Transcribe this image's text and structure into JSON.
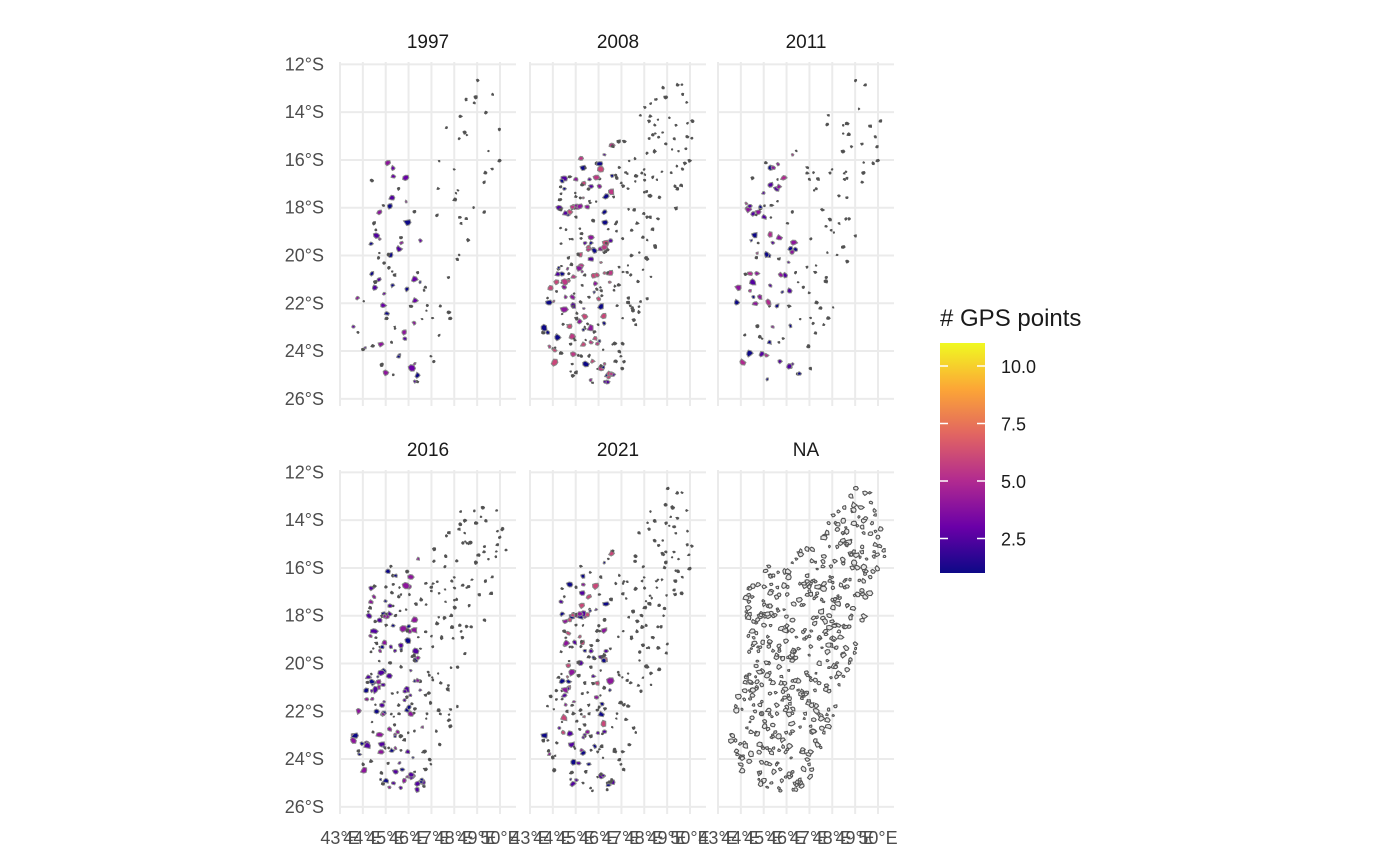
{
  "chart_data": {
    "type": "choropleth-facets",
    "subject": "Madagascar administrative regions",
    "facets": [
      {
        "label": "1997",
        "coverage": "sparse",
        "values": [
          1,
          2.5,
          3,
          4
        ]
      },
      {
        "label": "2008",
        "coverage": "dense",
        "values": [
          1,
          2.5,
          4,
          5.5,
          6
        ]
      },
      {
        "label": "2011",
        "coverage": "moderate",
        "values": [
          1,
          2.5,
          4,
          5
        ]
      },
      {
        "label": "2016",
        "coverage": "dense",
        "values": [
          1,
          2.5,
          4
        ]
      },
      {
        "label": "2021",
        "coverage": "dense",
        "values": [
          1,
          2.5,
          4,
          6
        ]
      },
      {
        "label": "NA",
        "coverage": "all-missing",
        "values": []
      }
    ],
    "y_axis": {
      "range": [
        -26.3,
        -11.9
      ],
      "ticks": [
        -12,
        -14,
        -16,
        -18,
        -20,
        -22,
        -24,
        -26
      ],
      "tick_labels": [
        "12°S",
        "14°S",
        "16°S",
        "18°S",
        "20°S",
        "22°S",
        "24°S",
        "26°S"
      ]
    },
    "x_axis": {
      "range": [
        43.0,
        50.7
      ],
      "ticks": [
        43,
        44,
        45,
        46,
        47,
        48,
        49,
        50
      ],
      "tick_labels": [
        "43°E",
        "44°E",
        "45°E",
        "46°E",
        "47°E",
        "48°E",
        "49°E",
        "50°E"
      ]
    },
    "legend": {
      "title": "# GPS points",
      "min": 1,
      "max": 11,
      "ticks": [
        2.5,
        5.0,
        7.5,
        10.0
      ],
      "tick_labels": [
        "2.5",
        "5.0",
        "7.5",
        "10.0"
      ],
      "placement": "right",
      "palette": [
        "#0d0887",
        "#6a00a8",
        "#b12a90",
        "#e16462",
        "#fca636",
        "#f0f921"
      ]
    },
    "colors": {
      "missing_fill": "#e8e8e8",
      "border": "#555555",
      "grid": "#ebebeb"
    },
    "grid": true
  }
}
